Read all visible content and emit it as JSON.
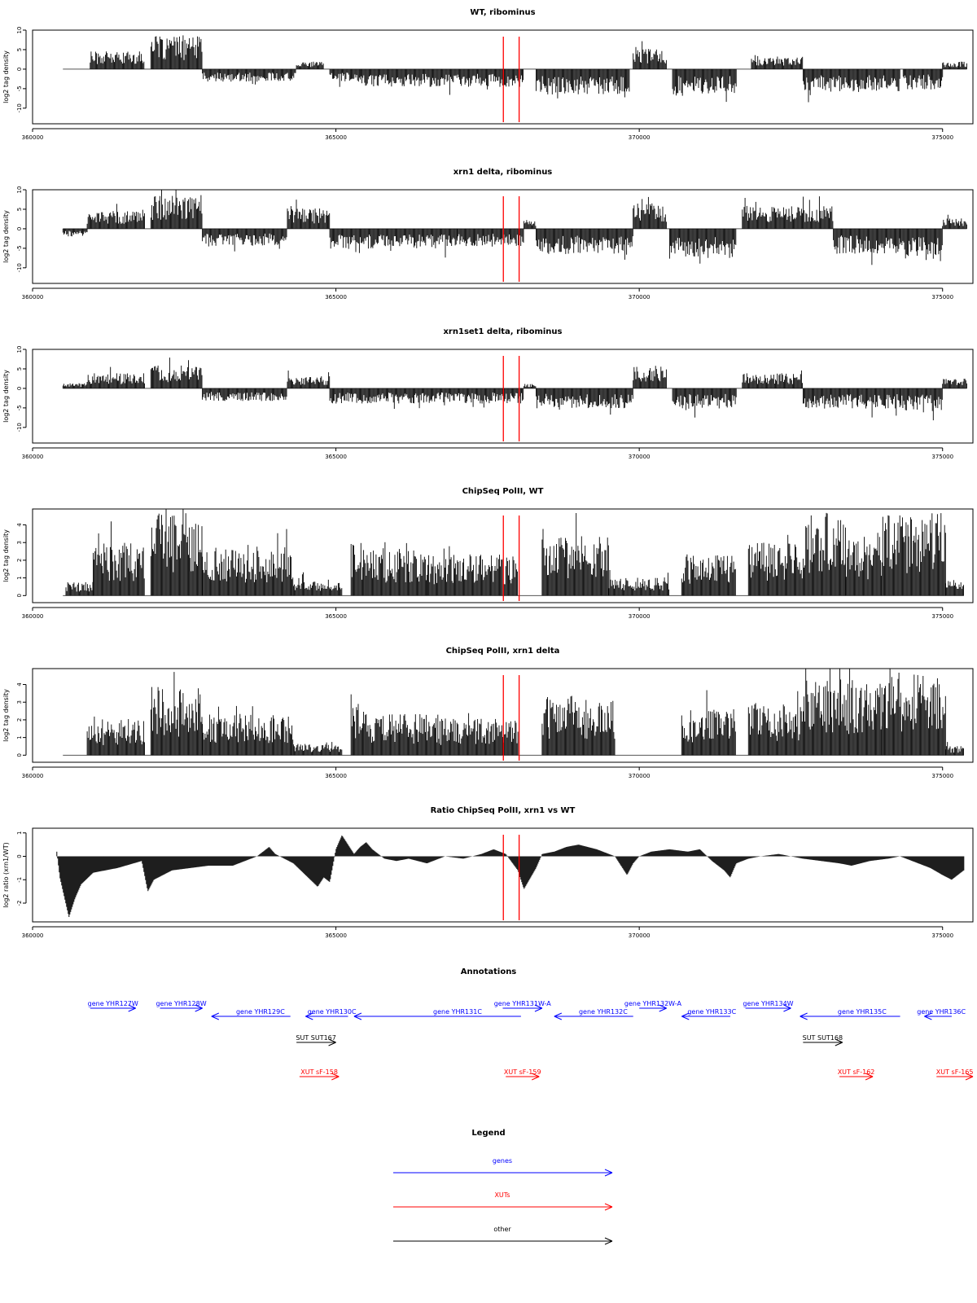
{
  "colors": {
    "gene": "#0000ff",
    "xut": "#ff0000",
    "other": "#000000",
    "marker": "#ff0000",
    "bars": "#000000"
  },
  "chart_data": [
    {
      "type": "bar",
      "title": "WT, ribominus",
      "ylabel": "log2 tag density",
      "xlim": [
        360000,
        375500
      ],
      "ylim": [
        -14,
        10
      ],
      "yticks": [
        -10,
        -5,
        0,
        5,
        10
      ],
      "xticks": [
        360000,
        365000,
        370000,
        375000
      ],
      "markers": [
        367760,
        368020
      ],
      "segments": [
        {
          "start": 360500,
          "end": 360950,
          "strand": "+",
          "level": 0
        },
        {
          "start": 360950,
          "end": 361850,
          "strand": "+",
          "level": 3.5
        },
        {
          "start": 361950,
          "end": 362800,
          "strand": "+",
          "level": 6.5
        },
        {
          "start": 362800,
          "end": 364350,
          "strand": "-",
          "level": 2.5
        },
        {
          "start": 364350,
          "end": 364800,
          "strand": "+",
          "level": 1.5
        },
        {
          "start": 364900,
          "end": 365400,
          "strand": "-",
          "level": 2.5
        },
        {
          "start": 365400,
          "end": 368100,
          "strand": "-",
          "level": 3.5
        },
        {
          "start": 368300,
          "end": 369850,
          "strand": "-",
          "level": 5
        },
        {
          "start": 369900,
          "end": 370450,
          "strand": "+",
          "level": 4
        },
        {
          "start": 370550,
          "end": 371600,
          "strand": "-",
          "level": 5
        },
        {
          "start": 371850,
          "end": 372700,
          "strand": "+",
          "level": 2.5
        },
        {
          "start": 372700,
          "end": 374300,
          "strand": "-",
          "level": 4.5
        },
        {
          "start": 374350,
          "end": 375000,
          "strand": "-",
          "level": 4
        },
        {
          "start": 375000,
          "end": 375400,
          "strand": "+",
          "level": 1.5
        }
      ]
    },
    {
      "type": "bar",
      "title": "xrn1 delta, ribominus",
      "ylabel": "log2 tag density",
      "xlim": [
        360000,
        375500
      ],
      "ylim": [
        -14,
        10
      ],
      "yticks": [
        -10,
        -5,
        0,
        5,
        10
      ],
      "xticks": [
        360000,
        365000,
        370000,
        375000
      ],
      "markers": [
        367760,
        368020
      ],
      "segments": [
        {
          "start": 360500,
          "end": 360900,
          "strand": "-",
          "level": 1.5
        },
        {
          "start": 360900,
          "end": 361850,
          "strand": "+",
          "level": 3.5
        },
        {
          "start": 361950,
          "end": 362800,
          "strand": "+",
          "level": 6.5
        },
        {
          "start": 362800,
          "end": 364200,
          "strand": "-",
          "level": 3.5
        },
        {
          "start": 364200,
          "end": 364900,
          "strand": "+",
          "level": 4
        },
        {
          "start": 364900,
          "end": 367000,
          "strand": "-",
          "level": 4
        },
        {
          "start": 367000,
          "end": 368100,
          "strand": "-",
          "level": 3.5
        },
        {
          "start": 368100,
          "end": 368300,
          "strand": "+",
          "level": 2
        },
        {
          "start": 368300,
          "end": 369900,
          "strand": "-",
          "level": 5
        },
        {
          "start": 369900,
          "end": 370450,
          "strand": "+",
          "level": 5
        },
        {
          "start": 370500,
          "end": 371600,
          "strand": "-",
          "level": 6
        },
        {
          "start": 371700,
          "end": 373200,
          "strand": "+",
          "level": 4.5
        },
        {
          "start": 373200,
          "end": 374300,
          "strand": "-",
          "level": 5
        },
        {
          "start": 374300,
          "end": 375000,
          "strand": "-",
          "level": 6
        },
        {
          "start": 375000,
          "end": 375400,
          "strand": "+",
          "level": 2
        }
      ]
    },
    {
      "type": "bar",
      "title": "xrn1set1 delta, ribominus",
      "ylabel": "log2 tag density",
      "xlim": [
        360000,
        375500
      ],
      "ylim": [
        -14,
        10
      ],
      "yticks": [
        -10,
        -5,
        0,
        5,
        10
      ],
      "xticks": [
        360000,
        365000,
        370000,
        375000
      ],
      "markers": [
        367760,
        368020
      ],
      "segments": [
        {
          "start": 360500,
          "end": 360900,
          "strand": "+",
          "level": 1
        },
        {
          "start": 360900,
          "end": 361850,
          "strand": "+",
          "level": 3
        },
        {
          "start": 361950,
          "end": 362800,
          "strand": "+",
          "level": 4.5
        },
        {
          "start": 362800,
          "end": 364200,
          "strand": "-",
          "level": 2.5
        },
        {
          "start": 364200,
          "end": 364900,
          "strand": "+",
          "level": 2.5
        },
        {
          "start": 364900,
          "end": 368100,
          "strand": "-",
          "level": 3
        },
        {
          "start": 368100,
          "end": 368300,
          "strand": "+",
          "level": 1
        },
        {
          "start": 368300,
          "end": 369900,
          "strand": "-",
          "level": 4
        },
        {
          "start": 369900,
          "end": 370450,
          "strand": "+",
          "level": 4.5
        },
        {
          "start": 370550,
          "end": 371600,
          "strand": "-",
          "level": 4
        },
        {
          "start": 371700,
          "end": 372700,
          "strand": "+",
          "level": 3
        },
        {
          "start": 372700,
          "end": 374300,
          "strand": "-",
          "level": 4
        },
        {
          "start": 374300,
          "end": 375000,
          "strand": "-",
          "level": 4.5
        },
        {
          "start": 375000,
          "end": 375400,
          "strand": "+",
          "level": 2
        }
      ]
    },
    {
      "type": "bar",
      "title": "ChipSeq PolII, WT",
      "ylabel": "log2 tag density",
      "xlim": [
        360000,
        375500
      ],
      "ylim": [
        -0.4,
        4.9
      ],
      "yticks": [
        0,
        1,
        2,
        3,
        4
      ],
      "xticks": [
        360000,
        365000,
        370000,
        375000
      ],
      "markers": [
        367760,
        368020
      ],
      "segments": [
        {
          "start": 360550,
          "end": 361000,
          "strand": "+",
          "level": 0.6
        },
        {
          "start": 361000,
          "end": 361850,
          "strand": "+",
          "level": 2.3
        },
        {
          "start": 361950,
          "end": 362800,
          "strand": "+",
          "level": 3.7
        },
        {
          "start": 362800,
          "end": 364300,
          "strand": "+",
          "level": 2.1
        },
        {
          "start": 364300,
          "end": 365100,
          "strand": "+",
          "level": 0.7
        },
        {
          "start": 365250,
          "end": 365500,
          "strand": "+",
          "level": 2.5
        },
        {
          "start": 365500,
          "end": 366500,
          "strand": "+",
          "level": 2.1
        },
        {
          "start": 366500,
          "end": 368000,
          "strand": "+",
          "level": 1.8
        },
        {
          "start": 368400,
          "end": 369500,
          "strand": "+",
          "level": 2.6
        },
        {
          "start": 369500,
          "end": 370500,
          "strand": "+",
          "level": 0.8
        },
        {
          "start": 370700,
          "end": 371600,
          "strand": "+",
          "level": 1.8
        },
        {
          "start": 371800,
          "end": 372700,
          "strand": "+",
          "level": 2.3
        },
        {
          "start": 372700,
          "end": 373400,
          "strand": "+",
          "level": 3.6
        },
        {
          "start": 373400,
          "end": 374000,
          "strand": "+",
          "level": 2.6
        },
        {
          "start": 374000,
          "end": 375050,
          "strand": "+",
          "level": 3.6
        },
        {
          "start": 375050,
          "end": 375350,
          "strand": "+",
          "level": 0.7
        }
      ]
    },
    {
      "type": "bar",
      "title": "ChipSeq PolII, xrn1 delta",
      "ylabel": "log2 tag density",
      "xlim": [
        360000,
        375500
      ],
      "ylim": [
        -0.4,
        4.9
      ],
      "yticks": [
        0,
        1,
        2,
        3,
        4
      ],
      "xticks": [
        360000,
        365000,
        370000,
        375000
      ],
      "markers": [
        367760,
        368020
      ],
      "segments": [
        {
          "start": 360900,
          "end": 361850,
          "strand": "+",
          "level": 1.6
        },
        {
          "start": 361950,
          "end": 362800,
          "strand": "+",
          "level": 3
        },
        {
          "start": 362800,
          "end": 364300,
          "strand": "+",
          "level": 1.8
        },
        {
          "start": 364300,
          "end": 365100,
          "strand": "+",
          "level": 0.5
        },
        {
          "start": 365250,
          "end": 365500,
          "strand": "+",
          "level": 2.3
        },
        {
          "start": 365500,
          "end": 366700,
          "strand": "+",
          "level": 1.8
        },
        {
          "start": 366700,
          "end": 368000,
          "strand": "+",
          "level": 1.6
        },
        {
          "start": 368400,
          "end": 369600,
          "strand": "+",
          "level": 2.6
        },
        {
          "start": 370700,
          "end": 371600,
          "strand": "+",
          "level": 2
        },
        {
          "start": 371800,
          "end": 372700,
          "strand": "+",
          "level": 2.3
        },
        {
          "start": 372700,
          "end": 374000,
          "strand": "+",
          "level": 3.3
        },
        {
          "start": 374000,
          "end": 375050,
          "strand": "+",
          "level": 3.6
        },
        {
          "start": 375050,
          "end": 375350,
          "strand": "+",
          "level": 0.4
        }
      ]
    },
    {
      "type": "area",
      "title": "Ratio ChipSeq PolII, xrn1 vs WT",
      "ylabel": "log2 ratio (xrn1/WT)",
      "xlim": [
        360000,
        375500
      ],
      "ylim": [
        -2.8,
        1.2
      ],
      "yticks": [
        -2,
        -1,
        0,
        1
      ],
      "xticks": [
        360000,
        365000,
        370000,
        375000
      ],
      "markers": [
        367760,
        368020
      ],
      "x": [
        360400,
        360450,
        360600,
        360700,
        360800,
        361000,
        361400,
        361800,
        361900,
        362000,
        362300,
        362600,
        362900,
        363300,
        363700,
        363900,
        364000,
        364300,
        364500,
        364700,
        364800,
        364900,
        365000,
        365100,
        365200,
        365300,
        365400,
        365500,
        365600,
        365800,
        366000,
        366200,
        366500,
        366800,
        367100,
        367400,
        367600,
        367800,
        368000,
        368100,
        368300,
        368400,
        368600,
        368800,
        369000,
        369300,
        369600,
        369800,
        369900,
        370000,
        370200,
        370500,
        370800,
        371000,
        371200,
        371400,
        371500,
        371600,
        371800,
        372000,
        372300,
        372700,
        373000,
        373300,
        373500,
        373800,
        374100,
        374300,
        374500,
        374800,
        375000,
        375150,
        375350
      ],
      "y": [
        0.2,
        -0.9,
        -2.6,
        -1.8,
        -1.2,
        -0.7,
        -0.5,
        -0.2,
        -1.5,
        -1.0,
        -0.6,
        -0.5,
        -0.4,
        -0.4,
        0.0,
        0.4,
        0.1,
        -0.3,
        -0.8,
        -1.3,
        -0.9,
        -1.1,
        0.3,
        0.9,
        0.5,
        0.1,
        0.4,
        0.6,
        0.3,
        -0.1,
        -0.2,
        -0.1,
        -0.3,
        0.0,
        -0.1,
        0.1,
        0.3,
        0.1,
        -0.6,
        -1.4,
        -0.5,
        0.1,
        0.2,
        0.4,
        0.5,
        0.3,
        0.0,
        -0.8,
        -0.3,
        0.0,
        0.2,
        0.3,
        0.2,
        0.3,
        -0.2,
        -0.6,
        -0.9,
        -0.3,
        -0.1,
        0.0,
        0.1,
        -0.1,
        -0.2,
        -0.3,
        -0.4,
        -0.2,
        -0.1,
        0.0,
        -0.2,
        -0.5,
        -0.8,
        -1.0,
        -0.6
      ]
    }
  ],
  "annotations": {
    "title": "Annotations",
    "genes": [
      {
        "label": "gene YHR127W",
        "start": 360950,
        "end": 361700,
        "strand": "+"
      },
      {
        "label": "gene YHR128W",
        "start": 362100,
        "end": 362800,
        "strand": "+"
      },
      {
        "label": "gene YHR129C",
        "start": 362950,
        "end": 364250,
        "strand": "-"
      },
      {
        "label": "gene YHR130C",
        "start": 364500,
        "end": 365200,
        "strand": "-"
      },
      {
        "label": "gene YHR131C",
        "start": 365300,
        "end": 368050,
        "strand": "-"
      },
      {
        "label": "gene YHR131W-A",
        "start": 367750,
        "end": 368400,
        "strand": "+"
      },
      {
        "label": "gene YHR132C",
        "start": 368600,
        "end": 369900,
        "strand": "-"
      },
      {
        "label": "gene YHR132W-A",
        "start": 370000,
        "end": 370450,
        "strand": "+"
      },
      {
        "label": "gene YHR133C",
        "start": 370700,
        "end": 371500,
        "strand": "-"
      },
      {
        "label": "gene YHR134W",
        "start": 371750,
        "end": 372500,
        "strand": "+"
      },
      {
        "label": "gene YHR135C",
        "start": 372650,
        "end": 374300,
        "strand": "-"
      },
      {
        "label": "gene YHR136C",
        "start": 374700,
        "end": 375150,
        "strand": "-"
      }
    ],
    "others": [
      {
        "label": "SUT SUT167",
        "start": 364350,
        "end": 365000,
        "strand": "+"
      },
      {
        "label": "SUT SUT168",
        "start": 372700,
        "end": 373350,
        "strand": "+"
      }
    ],
    "xuts": [
      {
        "label": "XUT sF-158",
        "start": 364400,
        "end": 365050,
        "strand": "+"
      },
      {
        "label": "XUT sF-159",
        "start": 367800,
        "end": 368350,
        "strand": "+"
      },
      {
        "label": "XUT sF-162",
        "start": 373300,
        "end": 373850,
        "strand": "+"
      },
      {
        "label": "XUT sF-165",
        "start": 374900,
        "end": 375500,
        "strand": "+"
      }
    ]
  },
  "legend": {
    "title": "Legend",
    "items": [
      {
        "label": "genes",
        "kind": "gene"
      },
      {
        "label": "XUTs",
        "kind": "xut"
      },
      {
        "label": "other",
        "kind": "other"
      }
    ]
  }
}
